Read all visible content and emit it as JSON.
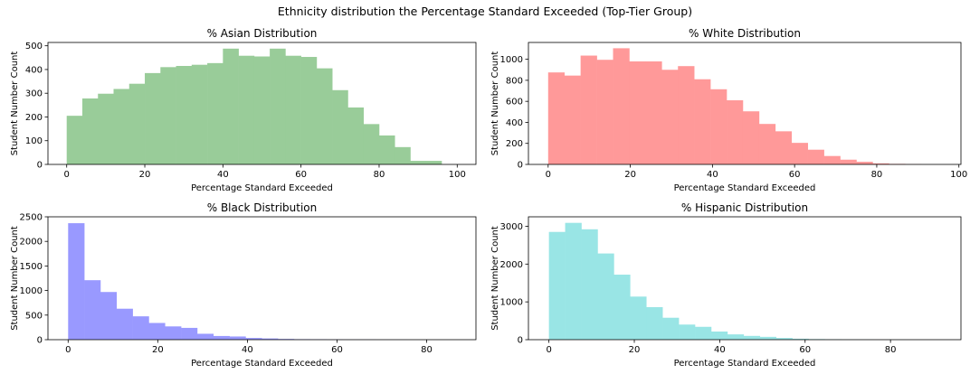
{
  "suptitle": "Ethnicity distribution the Percentage Standard Exceeded (Top-Tier Group)",
  "chart_data": [
    {
      "type": "bar",
      "title": "% Asian Distribution",
      "xlabel": "Percentage Standard Exceeded",
      "ylabel": "Student Number Count",
      "color": "#99cc99",
      "bin_start": 0,
      "bin_width": 4.0,
      "values": [
        205,
        278,
        298,
        318,
        340,
        385,
        410,
        415,
        420,
        427,
        488,
        458,
        455,
        488,
        458,
        453,
        405,
        313,
        240,
        170,
        122,
        73,
        15,
        15
      ],
      "xlim": [
        -4.8,
        104.8
      ],
      "ylim": [
        0,
        514
      ],
      "xticks": [
        0,
        20,
        40,
        60,
        80,
        100
      ],
      "yticks": [
        0,
        100,
        200,
        300,
        400,
        500
      ]
    },
    {
      "type": "bar",
      "title": "% White Distribution",
      "xlabel": "Percentage Standard Exceeded",
      "ylabel": "Student Number Count",
      "color": "#ff9999",
      "bin_start": 0,
      "bin_width": 3.95,
      "values": [
        875,
        845,
        1035,
        995,
        1105,
        980,
        980,
        900,
        935,
        810,
        715,
        610,
        505,
        385,
        315,
        205,
        140,
        80,
        45,
        25,
        10,
        5,
        2,
        0
      ],
      "xlim": [
        -4.8,
        100.5
      ],
      "ylim": [
        0,
        1160
      ],
      "xticks": [
        0,
        20,
        40,
        60,
        80,
        100
      ],
      "yticks": [
        0,
        200,
        400,
        600,
        800,
        1000
      ]
    },
    {
      "type": "bar",
      "title": "% Black Distribution",
      "xlabel": "Percentage Standard Exceeded",
      "ylabel": "Student Number Count",
      "color": "#9999ff",
      "bin_start": 0,
      "bin_width": 3.6,
      "values": [
        2370,
        1210,
        970,
        630,
        475,
        340,
        270,
        240,
        120,
        75,
        65,
        35,
        25,
        15,
        10,
        8,
        5,
        3,
        2,
        1,
        1,
        0,
        0,
        0
      ],
      "xlim": [
        -4.5,
        91.0
      ],
      "ylim": [
        0,
        2500
      ],
      "xticks": [
        0,
        20,
        40,
        60,
        80
      ],
      "yticks": [
        0,
        500,
        1000,
        1500,
        2000,
        2500
      ]
    },
    {
      "type": "bar",
      "title": "% Hispanic Distribution",
      "xlabel": "Percentage Standard Exceeded",
      "ylabel": "Student Number Count",
      "color": "#99e5e5",
      "bin_start": 0,
      "bin_width": 3.8,
      "values": [
        2850,
        3090,
        2920,
        2280,
        1720,
        1140,
        860,
        580,
        400,
        340,
        215,
        140,
        100,
        75,
        45,
        25,
        15,
        10,
        5,
        3,
        2,
        1,
        0,
        0
      ],
      "xlim": [
        -4.8,
        96.5
      ],
      "ylim": [
        0,
        3250
      ],
      "xticks": [
        0,
        20,
        40,
        60,
        80
      ],
      "yticks": [
        0,
        1000,
        2000,
        3000
      ]
    }
  ]
}
